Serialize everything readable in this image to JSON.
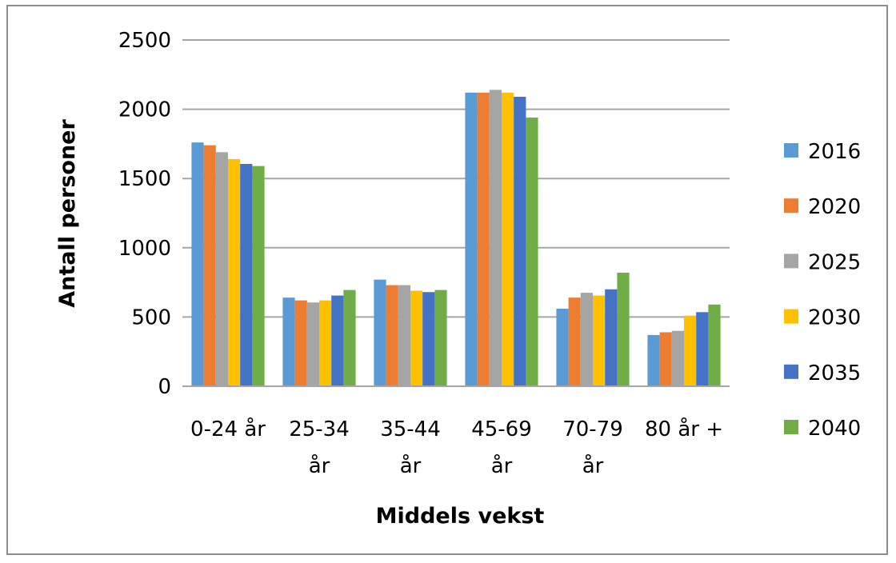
{
  "chart_data": {
    "type": "bar",
    "title": "",
    "xlabel": "Middels vekst",
    "ylabel": "Antall personer",
    "categories": [
      [
        "0-24 år"
      ],
      [
        "25-34",
        "år"
      ],
      [
        "35-44",
        "år"
      ],
      [
        "45-69",
        "år"
      ],
      [
        "70-79",
        "år"
      ],
      [
        "80 år +"
      ]
    ],
    "y_ticks": [
      "0",
      "500",
      "1000",
      "1500",
      "2000",
      "2500"
    ],
    "ylim": [
      0,
      2500
    ],
    "grid": true,
    "legend_position": "right",
    "series": [
      {
        "name": "2016",
        "color": "#5b9bd5",
        "values": [
          1760,
          640,
          770,
          2120,
          560,
          370
        ]
      },
      {
        "name": "2020",
        "color": "#ed7d31",
        "values": [
          1740,
          620,
          730,
          2120,
          640,
          390
        ]
      },
      {
        "name": "2025",
        "color": "#a5a5a5",
        "values": [
          1690,
          605,
          730,
          2140,
          675,
          400
        ]
      },
      {
        "name": "2030",
        "color": "#ffc000",
        "values": [
          1640,
          620,
          690,
          2120,
          655,
          510
        ]
      },
      {
        "name": "2035",
        "color": "#4472c4",
        "values": [
          1605,
          655,
          680,
          2090,
          700,
          535
        ]
      },
      {
        "name": "2040",
        "color": "#70ad47",
        "values": [
          1590,
          695,
          695,
          1940,
          820,
          590
        ]
      }
    ]
  }
}
